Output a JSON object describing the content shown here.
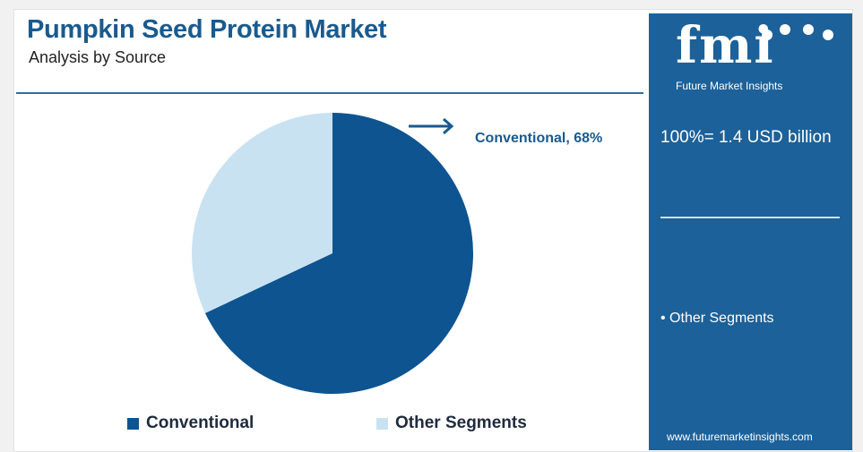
{
  "header": {
    "title": "Pumpkin Seed Protein Market",
    "subtitle": "Analysis by Source"
  },
  "chart_data": {
    "type": "pie",
    "categories": [
      "Conventional",
      "Other Segments"
    ],
    "values": [
      68,
      32
    ],
    "colors": [
      "#0d5490",
      "#c9e2f2"
    ],
    "annotation": "Conventional, 68%",
    "legend": [
      "Conventional",
      "Other Segments"
    ],
    "legend_placement": "bottom"
  },
  "side_panel": {
    "logo_text": "fmi",
    "logo_subtitle": "Future Market Insights",
    "total": "100%= 1.4 USD billion",
    "bullet": "• Other Segments",
    "website": "www.futuremarketinsights.com",
    "background_color": "#1c6199"
  },
  "colors": {
    "title": "#1a5a8e",
    "primary": "#0d5490",
    "secondary": "#c9e2f2"
  },
  "icons": {
    "annotation_arrow": "right-arrow-icon"
  }
}
